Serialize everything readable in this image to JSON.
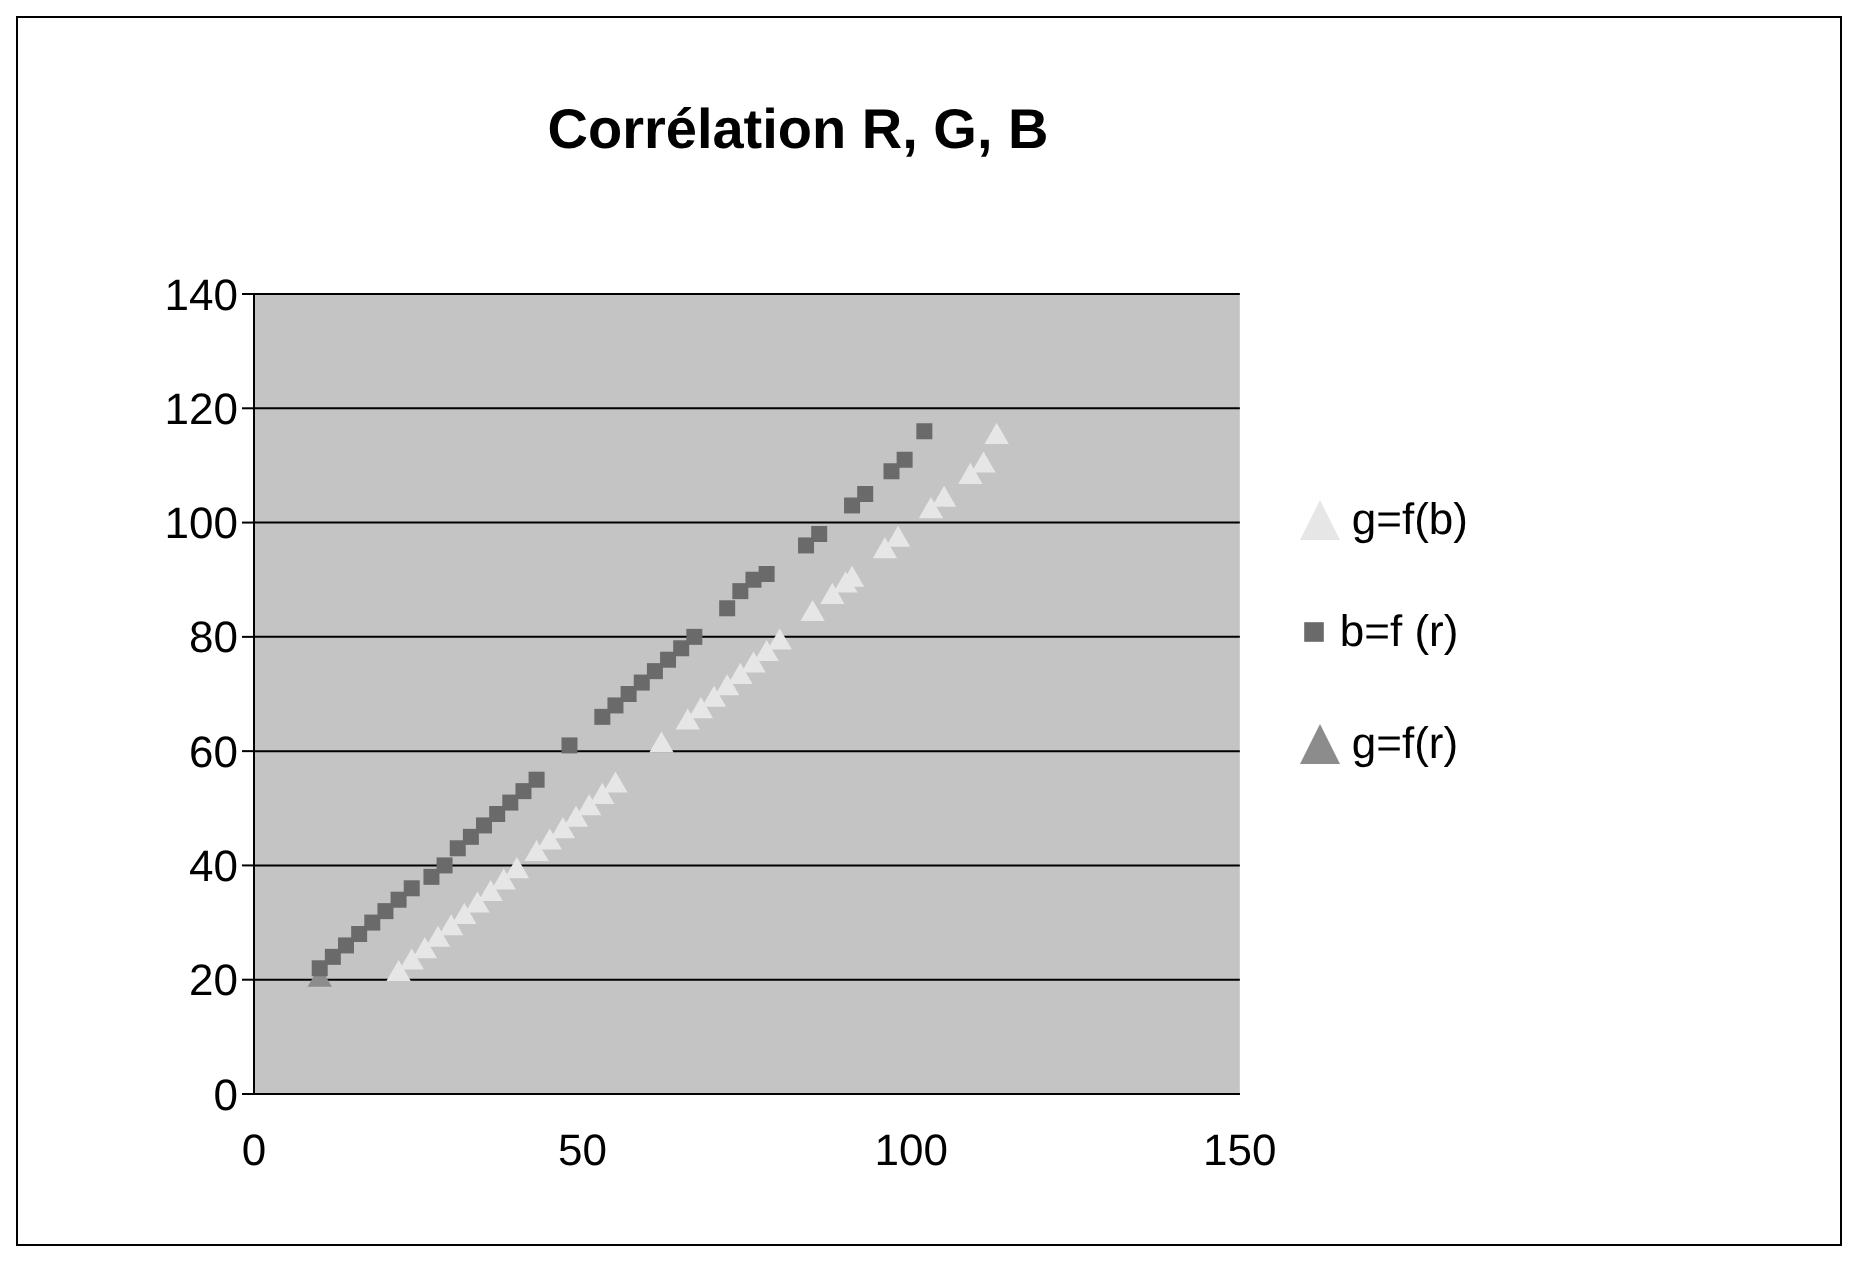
{
  "chart_data": {
    "type": "scatter",
    "title": "Corrélation R, G, B",
    "xlim": [
      0,
      150
    ],
    "xticks": [
      0,
      50,
      100,
      150
    ],
    "ylim": [
      0,
      140
    ],
    "yticks": [
      0,
      20,
      40,
      60,
      80,
      100,
      120,
      140
    ],
    "grid": "y",
    "legend": "right",
    "series": [
      {
        "name": "g=f(b)",
        "color": "#e6e6e6",
        "marker": "triangle",
        "x": [
          22,
          24,
          26,
          28,
          30,
          32,
          34,
          36,
          38,
          40,
          43,
          45,
          47,
          49,
          51,
          53,
          55,
          62,
          66,
          68,
          70,
          72,
          74,
          76,
          78,
          80,
          85,
          88,
          90,
          91,
          96,
          98,
          103,
          105,
          109,
          111,
          113
        ],
        "values": [
          21,
          23,
          25,
          27,
          29,
          31,
          33,
          35,
          37,
          39,
          42,
          44,
          46,
          48,
          50,
          52,
          54,
          61,
          65,
          67,
          69,
          71,
          73,
          75,
          77,
          79,
          84,
          87,
          89,
          90,
          95,
          97,
          102,
          104,
          108,
          110,
          115
        ]
      },
      {
        "name": "b=f (r)",
        "color": "#6a6a6a",
        "marker": "square",
        "x": [
          10,
          12,
          14,
          16,
          18,
          20,
          22,
          24,
          27,
          29,
          31,
          33,
          35,
          37,
          39,
          41,
          43,
          48,
          53,
          55,
          57,
          59,
          61,
          63,
          65,
          67,
          72,
          74,
          76,
          78,
          84,
          86,
          91,
          93,
          97,
          99,
          102
        ],
        "values": [
          22,
          24,
          26,
          28,
          30,
          32,
          34,
          36,
          38,
          40,
          43,
          45,
          47,
          49,
          51,
          53,
          55,
          61,
          66,
          68,
          70,
          72,
          74,
          76,
          78,
          80,
          85,
          88,
          90,
          91,
          96,
          98,
          103,
          105,
          109,
          111,
          116
        ]
      },
      {
        "name": "g=f(r)",
        "color": "#8c8c8c",
        "marker": "triangle",
        "x": [
          10
        ],
        "values": [
          20
        ]
      }
    ]
  }
}
